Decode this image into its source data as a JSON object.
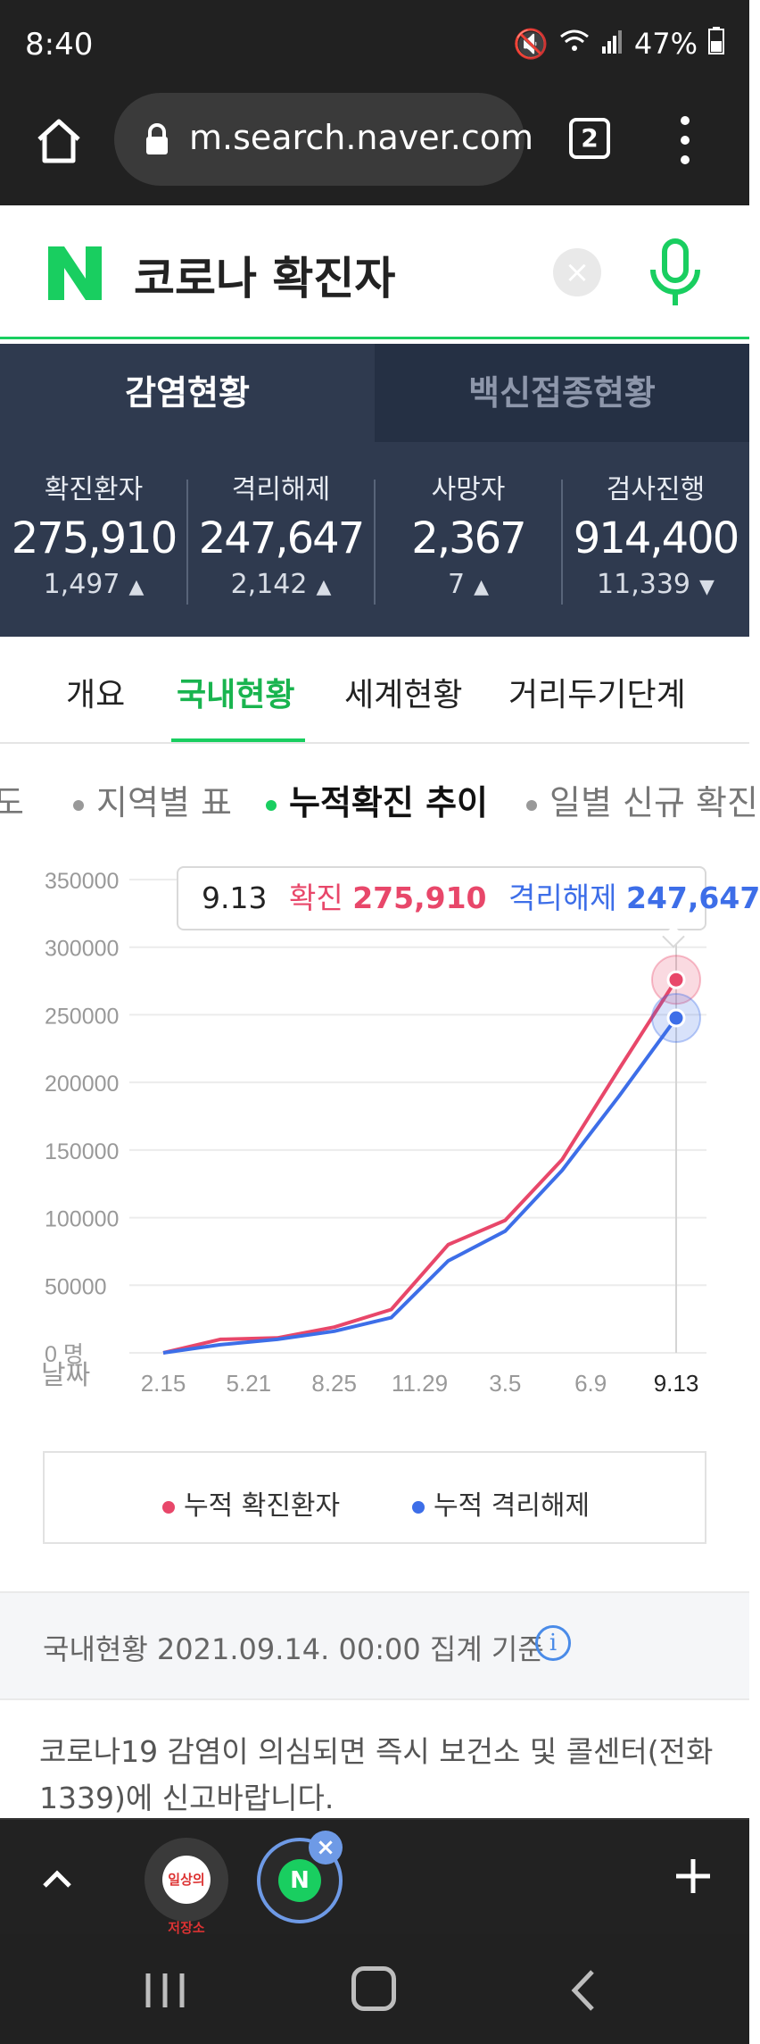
{
  "status_bar": {
    "time": "8:40",
    "battery": "47%"
  },
  "browser": {
    "url": "m.search.naver.com",
    "tab_count": "2"
  },
  "search": {
    "query": "코로나 확진자",
    "clear_symbol": "×"
  },
  "dashboard": {
    "tabs": [
      {
        "label": "감염현황",
        "active": true
      },
      {
        "label": "백신접종현황",
        "active": false
      }
    ],
    "stats": [
      {
        "label": "확진환자",
        "value": "275,910",
        "change": "1,497",
        "direction": "up"
      },
      {
        "label": "격리해제",
        "value": "247,647",
        "change": "2,142",
        "direction": "up"
      },
      {
        "label": "사망자",
        "value": "2,367",
        "change": "7",
        "direction": "up"
      },
      {
        "label": "검사진행",
        "value": "914,400",
        "change": "11,339",
        "direction": "down"
      }
    ]
  },
  "subtabs": [
    {
      "label": "개요",
      "active": false
    },
    {
      "label": "국내현황",
      "active": true
    },
    {
      "label": "세계현황",
      "active": false
    },
    {
      "label": "거리두기단계",
      "active": false
    }
  ],
  "chips": [
    {
      "label": "도",
      "active": false
    },
    {
      "label": "지역별 표",
      "active": false
    },
    {
      "label": "누적확진 추이",
      "active": true
    },
    {
      "label": "일별 신규 확진",
      "active": false
    }
  ],
  "tooltip": {
    "date": "9.13",
    "confirmed_label": "확진",
    "confirmed_value": "275,910",
    "released_label": "격리해제",
    "released_value": "247,647"
  },
  "chart_data": {
    "type": "line",
    "title": "",
    "xlabel": "날짜",
    "ylabel": "",
    "y_tick_labels": [
      "0 명",
      "50000",
      "100000",
      "150000",
      "200000",
      "250000",
      "300000",
      "350000"
    ],
    "ylim": [
      0,
      350000
    ],
    "x_tick_labels": [
      "2.15",
      "5.21",
      "8.25",
      "11.29",
      "3.5",
      "6.9",
      "9.13"
    ],
    "grid": true,
    "legend_position": "bottom",
    "series": [
      {
        "name": "누적 확진환자",
        "color": "#e8476a",
        "values": [
          0,
          10000,
          11000,
          19000,
          32000,
          80000,
          98000,
          143000,
          210000,
          275910
        ]
      },
      {
        "name": "누적 격리해제",
        "color": "#3d6ee8",
        "values": [
          0,
          6000,
          10000,
          16000,
          26000,
          68000,
          90000,
          135000,
          190000,
          247647
        ]
      }
    ]
  },
  "legend": [
    {
      "label": "누적 확진환자",
      "color": "#e8476a"
    },
    {
      "label": "누적 격리해제",
      "color": "#3d6ee8"
    }
  ],
  "info": {
    "text": "국내현황 2021.09.14. 00:00 집계 기준",
    "icon_symbol": "i",
    "notice": "코로나19 감염이 의심되면 즉시 보건소 및 콜센터(전화 1339)에 신고바랍니다."
  },
  "bottom_toolbar": {
    "tab1_label": "일상의저장소",
    "tab2_label": "N",
    "close_symbol": "×"
  }
}
